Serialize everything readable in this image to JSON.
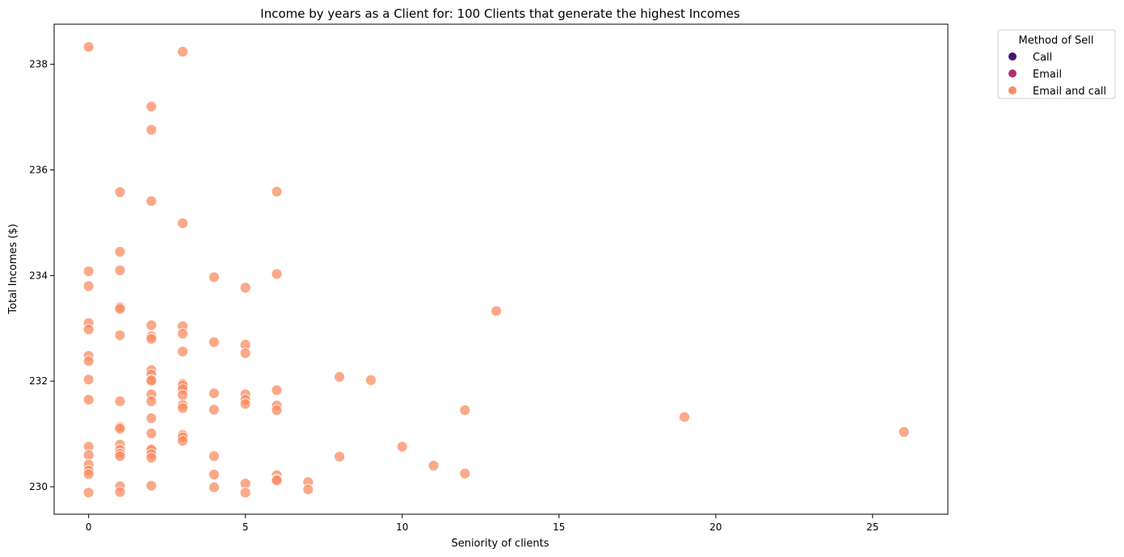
{
  "chart_data": {
    "type": "scatter",
    "title": "Income by years as a Client for: 100 Clients that generate the highest Incomes",
    "xlabel": "Seniority of clients",
    "ylabel": "Total Incomes ($)",
    "xlim": [
      -1.1,
      27.4
    ],
    "ylim": [
      229.48,
      238.76
    ],
    "xticks": [
      0,
      5,
      10,
      15,
      20,
      25
    ],
    "yticks": [
      230,
      232,
      234,
      236,
      238
    ],
    "grid": false,
    "legend": {
      "title": "Method of Sell",
      "placement": "outside top-right",
      "entries": [
        {
          "name": "Call",
          "color": "#4a1170"
        },
        {
          "name": "Email",
          "color": "#b02f72"
        },
        {
          "name": "Email and call",
          "color": "#f98c62"
        }
      ]
    },
    "series": [
      {
        "name": "Email and call",
        "color": "#f98c62",
        "points": [
          [
            0,
            238.33
          ],
          [
            0,
            234.08
          ],
          [
            0,
            233.8
          ],
          [
            0,
            233.1
          ],
          [
            0,
            232.98
          ],
          [
            0,
            232.48
          ],
          [
            0,
            232.38
          ],
          [
            0,
            232.03
          ],
          [
            0,
            231.65
          ],
          [
            0,
            230.76
          ],
          [
            0,
            230.6
          ],
          [
            0,
            230.42
          ],
          [
            0,
            230.31
          ],
          [
            0,
            230.24
          ],
          [
            0,
            229.89
          ],
          [
            1,
            235.58
          ],
          [
            1,
            234.45
          ],
          [
            1,
            234.1
          ],
          [
            1,
            233.4
          ],
          [
            1,
            233.37
          ],
          [
            1,
            232.87
          ],
          [
            1,
            231.62
          ],
          [
            1,
            231.13
          ],
          [
            1,
            231.1
          ],
          [
            1,
            230.8
          ],
          [
            1,
            230.7
          ],
          [
            1,
            230.63
          ],
          [
            1,
            230.58
          ],
          [
            1,
            230.01
          ],
          [
            1,
            229.9
          ],
          [
            2,
            237.2
          ],
          [
            2,
            236.76
          ],
          [
            2,
            235.41
          ],
          [
            2,
            233.06
          ],
          [
            2,
            232.85
          ],
          [
            2,
            232.8
          ],
          [
            2,
            232.21
          ],
          [
            2,
            232.13
          ],
          [
            2,
            232.03
          ],
          [
            2,
            232.01
          ],
          [
            2,
            231.75
          ],
          [
            2,
            231.62
          ],
          [
            2,
            231.3
          ],
          [
            2,
            231.01
          ],
          [
            2,
            230.72
          ],
          [
            2,
            230.7
          ],
          [
            2,
            230.62
          ],
          [
            2,
            230.55
          ],
          [
            2,
            230.02
          ],
          [
            3,
            238.24
          ],
          [
            3,
            234.99
          ],
          [
            3,
            233.04
          ],
          [
            3,
            232.9
          ],
          [
            3,
            232.56
          ],
          [
            3,
            231.95
          ],
          [
            3,
            231.92
          ],
          [
            3,
            231.85
          ],
          [
            3,
            231.74
          ],
          [
            3,
            231.55
          ],
          [
            3,
            231.49
          ],
          [
            3,
            230.98
          ],
          [
            3,
            230.94
          ],
          [
            3,
            230.87
          ],
          [
            4,
            233.97
          ],
          [
            4,
            232.74
          ],
          [
            4,
            231.77
          ],
          [
            4,
            231.46
          ],
          [
            4,
            230.58
          ],
          [
            4,
            230.23
          ],
          [
            4,
            229.99
          ],
          [
            5,
            233.77
          ],
          [
            5,
            232.69
          ],
          [
            5,
            232.53
          ],
          [
            5,
            231.75
          ],
          [
            5,
            231.65
          ],
          [
            5,
            231.57
          ],
          [
            5,
            230.06
          ],
          [
            5,
            229.89
          ],
          [
            6,
            235.59
          ],
          [
            6,
            234.03
          ],
          [
            6,
            231.83
          ],
          [
            6,
            231.54
          ],
          [
            6,
            231.45
          ],
          [
            6,
            230.22
          ],
          [
            6,
            230.14
          ],
          [
            6,
            230.12
          ],
          [
            7,
            230.09
          ],
          [
            7,
            229.95
          ],
          [
            8,
            232.08
          ],
          [
            8,
            230.57
          ],
          [
            9,
            232.02
          ],
          [
            10,
            230.76
          ],
          [
            11,
            230.4
          ],
          [
            12,
            231.45
          ],
          [
            12,
            230.25
          ],
          [
            13,
            233.33
          ],
          [
            19,
            231.32
          ],
          [
            26,
            231.04
          ]
        ]
      }
    ]
  }
}
